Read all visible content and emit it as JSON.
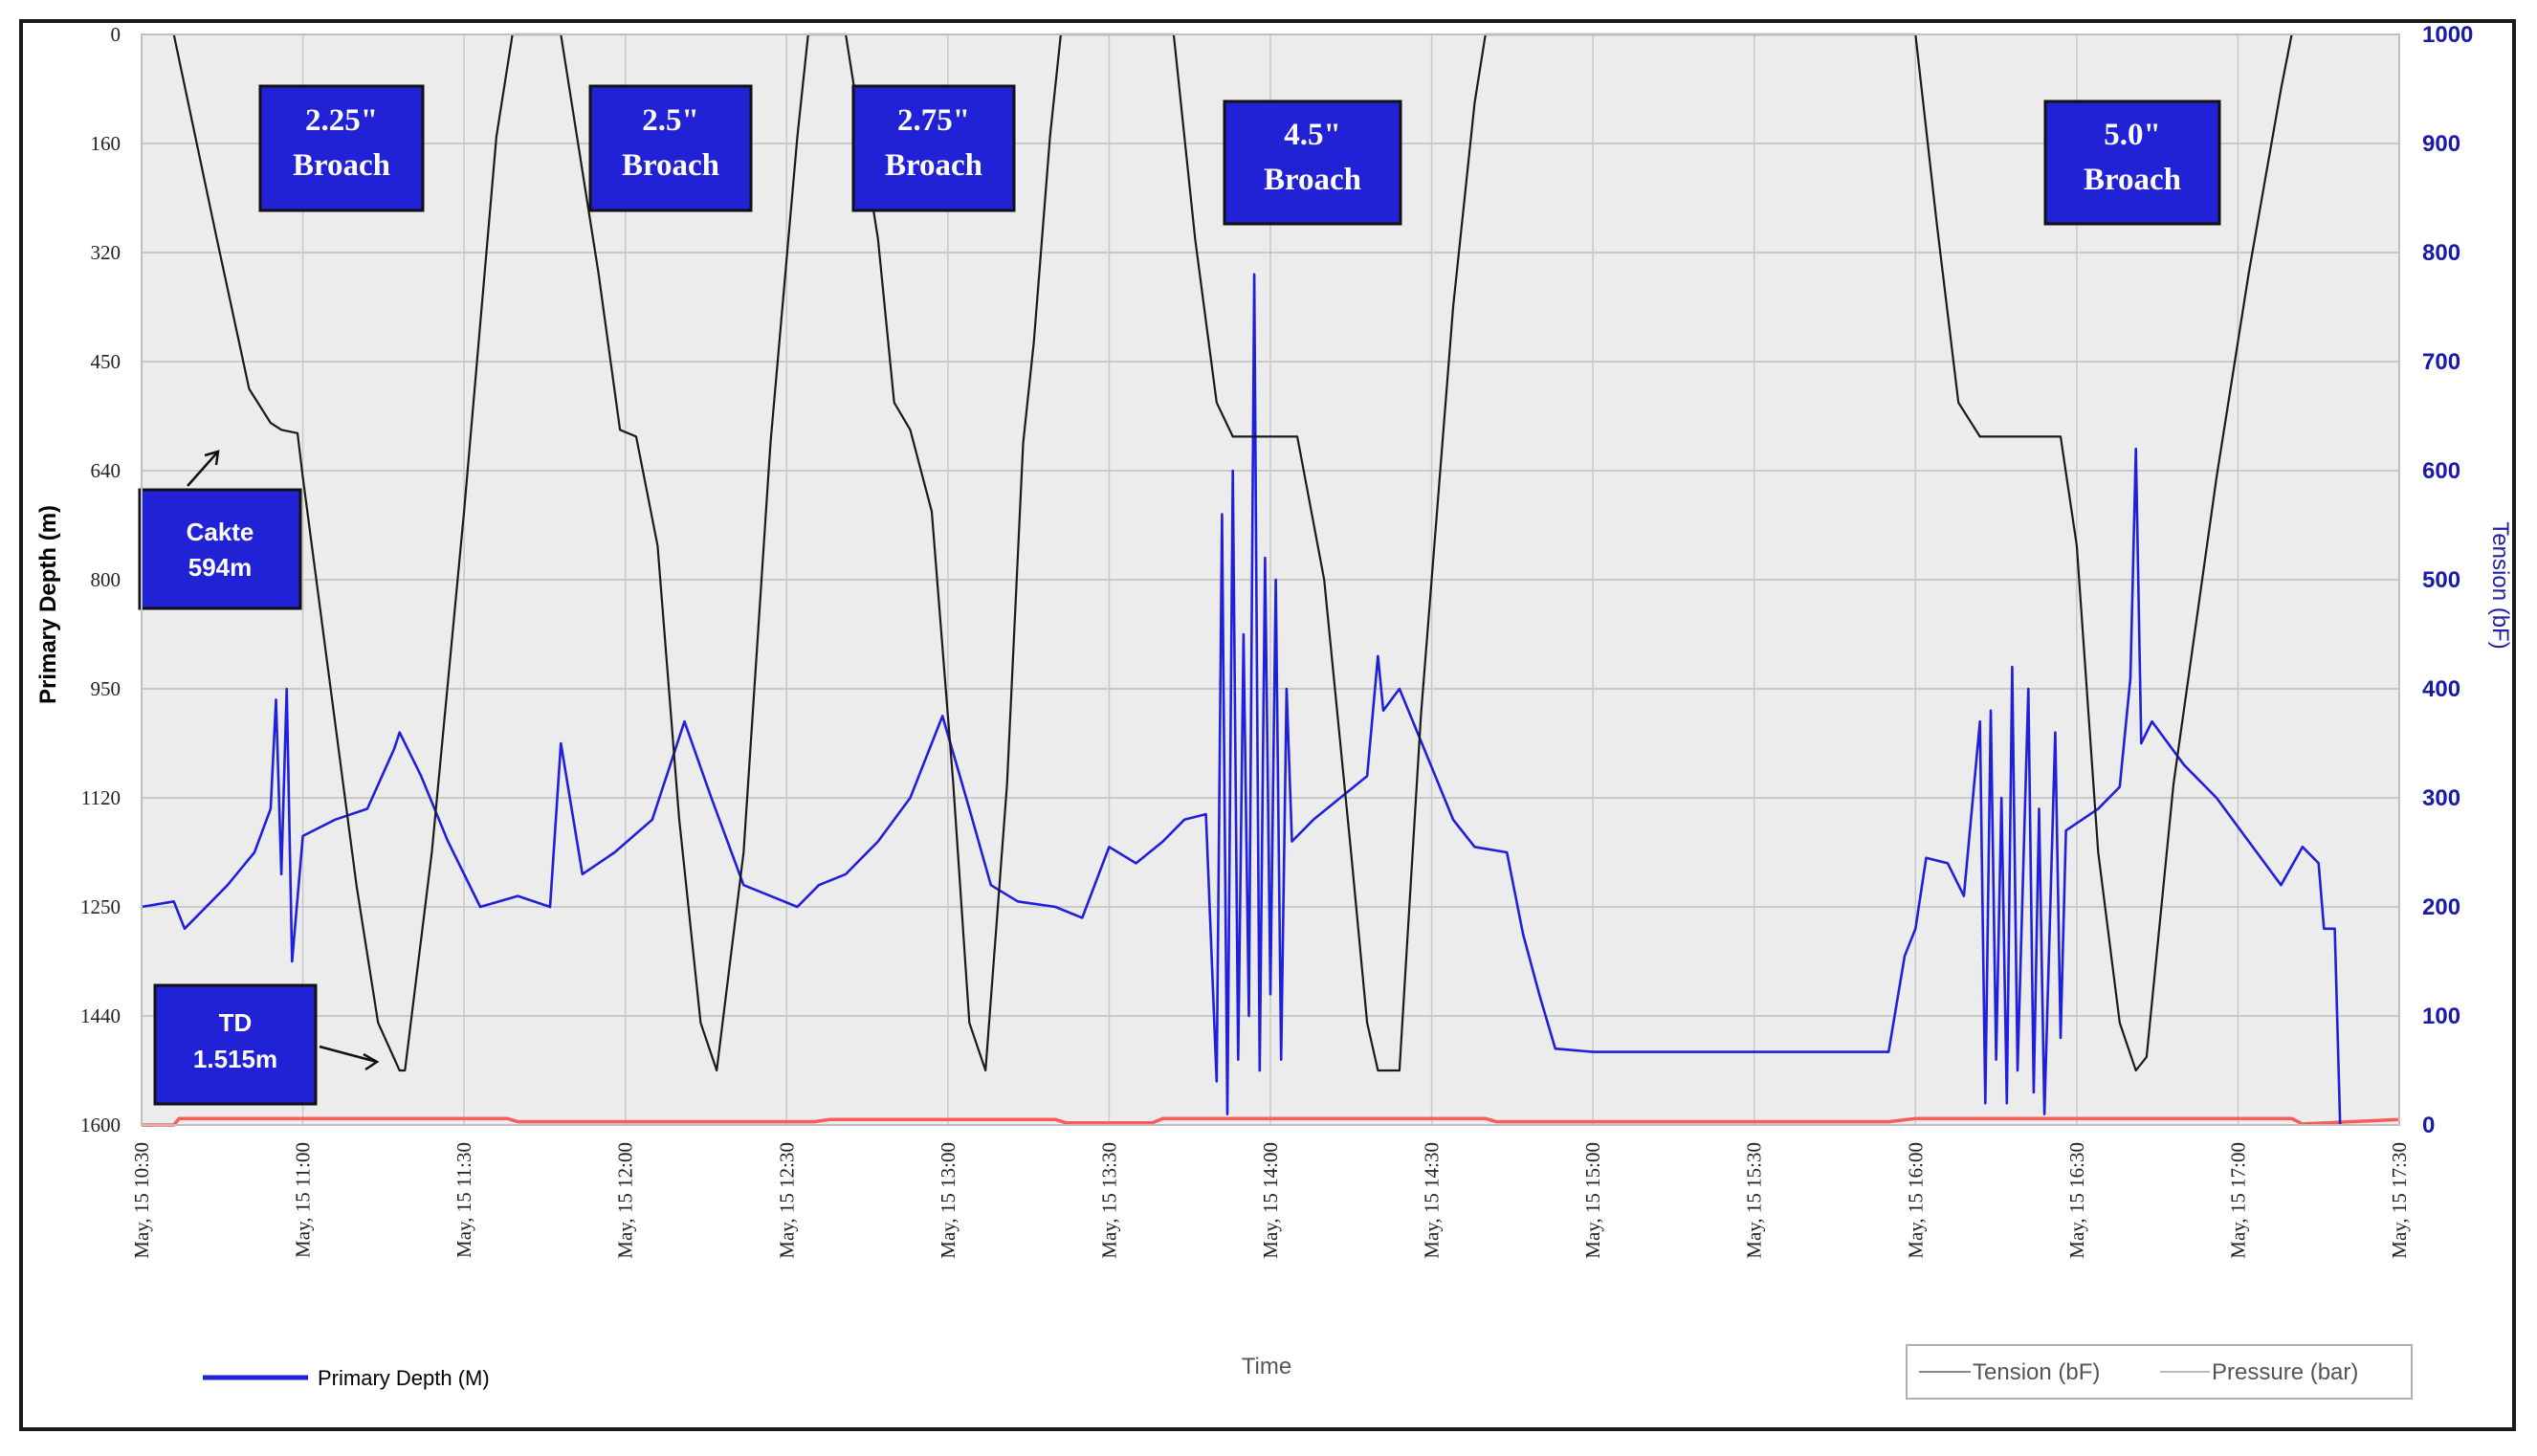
{
  "chart_data": {
    "type": "line",
    "xlabel": "Time",
    "ylabel_left": "Primary Depth (m)",
    "ylabel_right": "Tension (bF)",
    "ylim_left": [
      0,
      1600
    ],
    "ylim_right": [
      0,
      1000
    ],
    "y_left_ticks": [
      "0",
      "160",
      "320",
      "450",
      "640",
      "800",
      "950",
      "1120",
      "1250",
      "1440",
      "1600"
    ],
    "y_right_ticks": [
      "1000",
      "900",
      "800",
      "700",
      "600",
      "500",
      "400",
      "300",
      "200",
      "100",
      "0"
    ],
    "x_ticks": [
      "May, 15 10:30",
      "May, 15 11:00",
      "May, 15 11:30",
      "May, 15 12:00",
      "May, 15 12:30",
      "May, 15 13:00",
      "May, 15 13:30",
      "May, 15 14:00",
      "May, 15 14:30",
      "May, 15 15:00",
      "May, 15 15:30",
      "May, 15 16:00",
      "May, 15 16:30",
      "May, 15 17:00",
      "May, 15 17:30"
    ],
    "grid": true,
    "annotations": [
      {
        "id": "b225",
        "line1": "2.25\"",
        "line2": "Broach"
      },
      {
        "id": "b25",
        "line1": "2.5\"",
        "line2": "Broach"
      },
      {
        "id": "b275",
        "line1": "2.75\"",
        "line2": "Broach"
      },
      {
        "id": "b45",
        "line1": "4.5\"",
        "line2": "Broach"
      },
      {
        "id": "b50",
        "line1": "5.0\"",
        "line2": "Broach"
      },
      {
        "id": "cakte",
        "line1": "Cakte",
        "line2": "594m"
      },
      {
        "id": "td",
        "line1": "TD",
        "line2": "1.515m"
      }
    ],
    "legend": {
      "bottom_left": "Primary Depth (M)",
      "bottom_right": [
        "Tension (bF)",
        "Pressure (bar)"
      ]
    },
    "series": [
      {
        "name": "Primary Depth (M)",
        "axis": "left",
        "color": "#1a1a1a",
        "points": [
          [
            "10:36",
            0
          ],
          [
            "10:44",
            300
          ],
          [
            "10:50",
            520
          ],
          [
            "10:54",
            570
          ],
          [
            "10:56",
            580
          ],
          [
            "10:59",
            585
          ],
          [
            "11:00",
            650
          ],
          [
            "11:05",
            950
          ],
          [
            "11:10",
            1250
          ],
          [
            "11:14",
            1450
          ],
          [
            "11:18",
            1520
          ],
          [
            "11:19",
            1520
          ],
          [
            "11:24",
            1200
          ],
          [
            "11:30",
            700
          ],
          [
            "11:36",
            150
          ],
          [
            "11:39",
            0
          ],
          [
            "11:48",
            0
          ],
          [
            "11:55",
            350
          ],
          [
            "11:59",
            580
          ],
          [
            "12:02",
            590
          ],
          [
            "12:06",
            750
          ],
          [
            "12:10",
            1150
          ],
          [
            "12:14",
            1450
          ],
          [
            "12:17",
            1520
          ],
          [
            "12:22",
            1200
          ],
          [
            "12:27",
            600
          ],
          [
            "12:32",
            150
          ],
          [
            "12:34",
            0
          ],
          [
            "12:41",
            0
          ],
          [
            "12:47",
            300
          ],
          [
            "12:50",
            540
          ],
          [
            "12:53",
            580
          ],
          [
            "12:57",
            700
          ],
          [
            "13:01",
            1100
          ],
          [
            "13:04",
            1450
          ],
          [
            "13:07",
            1520
          ],
          [
            "13:11",
            1100
          ],
          [
            "13:14",
            600
          ],
          [
            "13:16",
            450
          ],
          [
            "13:19",
            150
          ],
          [
            "13:21",
            0
          ],
          [
            "13:42",
            0
          ],
          [
            "13:46",
            300
          ],
          [
            "13:50",
            540
          ],
          [
            "13:53",
            590
          ],
          [
            "14:05",
            590
          ],
          [
            "14:10",
            800
          ],
          [
            "14:15",
            1200
          ],
          [
            "14:18",
            1450
          ],
          [
            "14:20",
            1520
          ],
          [
            "14:24",
            1520
          ],
          [
            "14:28",
            1000
          ],
          [
            "14:34",
            400
          ],
          [
            "14:38",
            100
          ],
          [
            "14:40",
            0
          ],
          [
            "15:55",
            0
          ],
          [
            "16:00",
            0
          ],
          [
            "16:04",
            280
          ],
          [
            "16:08",
            540
          ],
          [
            "16:12",
            590
          ],
          [
            "16:27",
            590
          ],
          [
            "16:30",
            750
          ],
          [
            "16:34",
            1200
          ],
          [
            "16:38",
            1450
          ],
          [
            "16:41",
            1520
          ],
          [
            "16:43",
            1500
          ],
          [
            "16:48",
            1100
          ],
          [
            "16:56",
            650
          ],
          [
            "17:02",
            350
          ],
          [
            "17:08",
            80
          ],
          [
            "17:10",
            0
          ]
        ]
      },
      {
        "name": "Tension (bF)",
        "axis": "right",
        "color": "#1f1fdc",
        "points": [
          [
            "10:30",
            200
          ],
          [
            "10:36",
            205
          ],
          [
            "10:38",
            180
          ],
          [
            "10:46",
            220
          ],
          [
            "10:51",
            250
          ],
          [
            "10:54",
            290
          ],
          [
            "10:55",
            390
          ],
          [
            "10:56",
            230
          ],
          [
            "10:57",
            400
          ],
          [
            "10:58",
            150
          ],
          [
            "11:00",
            265
          ],
          [
            "11:06",
            280
          ],
          [
            "11:12",
            290
          ],
          [
            "11:17",
            345
          ],
          [
            "11:18",
            360
          ],
          [
            "11:22",
            320
          ],
          [
            "11:27",
            260
          ],
          [
            "11:33",
            200
          ],
          [
            "11:40",
            210
          ],
          [
            "11:46",
            200
          ],
          [
            "11:48",
            350
          ],
          [
            "11:52",
            230
          ],
          [
            "11:58",
            250
          ],
          [
            "12:05",
            280
          ],
          [
            "12:11",
            370
          ],
          [
            "12:16",
            300
          ],
          [
            "12:22",
            220
          ],
          [
            "12:27",
            210
          ],
          [
            "12:32",
            200
          ],
          [
            "12:36",
            220
          ],
          [
            "12:41",
            230
          ],
          [
            "12:47",
            260
          ],
          [
            "12:53",
            300
          ],
          [
            "12:59",
            375
          ],
          [
            "13:04",
            290
          ],
          [
            "13:08",
            220
          ],
          [
            "13:13",
            205
          ],
          [
            "13:20",
            200
          ],
          [
            "13:25",
            190
          ],
          [
            "13:30",
            255
          ],
          [
            "13:35",
            240
          ],
          [
            "13:40",
            260
          ],
          [
            "13:44",
            280
          ],
          [
            "13:48",
            285
          ],
          [
            "13:50",
            40
          ],
          [
            "13:51",
            560
          ],
          [
            "13:52",
            10
          ],
          [
            "13:53",
            600
          ],
          [
            "13:54",
            60
          ],
          [
            "13:55",
            450
          ],
          [
            "13:56",
            100
          ],
          [
            "13:57",
            780
          ],
          [
            "13:58",
            50
          ],
          [
            "13:59",
            520
          ],
          [
            "14:00",
            120
          ],
          [
            "14:01",
            500
          ],
          [
            "14:02",
            60
          ],
          [
            "14:03",
            400
          ],
          [
            "14:04",
            260
          ],
          [
            "14:08",
            280
          ],
          [
            "14:13",
            300
          ],
          [
            "14:18",
            320
          ],
          [
            "14:20",
            430
          ],
          [
            "14:21",
            380
          ],
          [
            "14:24",
            400
          ],
          [
            "14:29",
            340
          ],
          [
            "14:34",
            280
          ],
          [
            "14:38",
            255
          ],
          [
            "14:44",
            250
          ],
          [
            "14:47",
            175
          ],
          [
            "14:50",
            120
          ],
          [
            "14:53",
            70
          ],
          [
            "15:00",
            67
          ],
          [
            "15:55",
            67
          ],
          [
            "15:58",
            155
          ],
          [
            "16:00",
            180
          ],
          [
            "16:02",
            245
          ],
          [
            "16:06",
            240
          ],
          [
            "16:09",
            210
          ],
          [
            "16:12",
            370
          ],
          [
            "16:13",
            20
          ],
          [
            "16:14",
            380
          ],
          [
            "16:15",
            60
          ],
          [
            "16:16",
            300
          ],
          [
            "16:17",
            20
          ],
          [
            "16:18",
            420
          ],
          [
            "16:19",
            50
          ],
          [
            "16:21",
            400
          ],
          [
            "16:22",
            30
          ],
          [
            "16:23",
            290
          ],
          [
            "16:24",
            10
          ],
          [
            "16:26",
            360
          ],
          [
            "16:27",
            80
          ],
          [
            "16:28",
            270
          ],
          [
            "16:34",
            290
          ],
          [
            "16:38",
            310
          ],
          [
            "16:40",
            410
          ],
          [
            "16:41",
            620
          ],
          [
            "16:42",
            350
          ],
          [
            "16:44",
            370
          ],
          [
            "16:50",
            330
          ],
          [
            "16:56",
            300
          ],
          [
            "17:02",
            260
          ],
          [
            "17:08",
            220
          ],
          [
            "17:12",
            255
          ],
          [
            "17:15",
            240
          ],
          [
            "17:16",
            180
          ],
          [
            "17:18",
            180
          ],
          [
            "17:19",
            0
          ]
        ]
      },
      {
        "name": "Pressure (bar)",
        "axis": "right",
        "color": "#ff5a5a",
        "points": [
          [
            "10:30",
            0
          ],
          [
            "10:36",
            0
          ],
          [
            "10:37",
            6
          ],
          [
            "11:38",
            6
          ],
          [
            "11:40",
            3
          ],
          [
            "12:35",
            3
          ],
          [
            "12:38",
            5
          ],
          [
            "13:20",
            5
          ],
          [
            "13:22",
            2
          ],
          [
            "13:38",
            2
          ],
          [
            "13:40",
            6
          ],
          [
            "14:40",
            6
          ],
          [
            "14:42",
            3
          ],
          [
            "15:55",
            3
          ],
          [
            "16:00",
            6
          ],
          [
            "17:10",
            6
          ],
          [
            "17:12",
            1
          ],
          [
            "17:30",
            5
          ]
        ]
      }
    ]
  }
}
